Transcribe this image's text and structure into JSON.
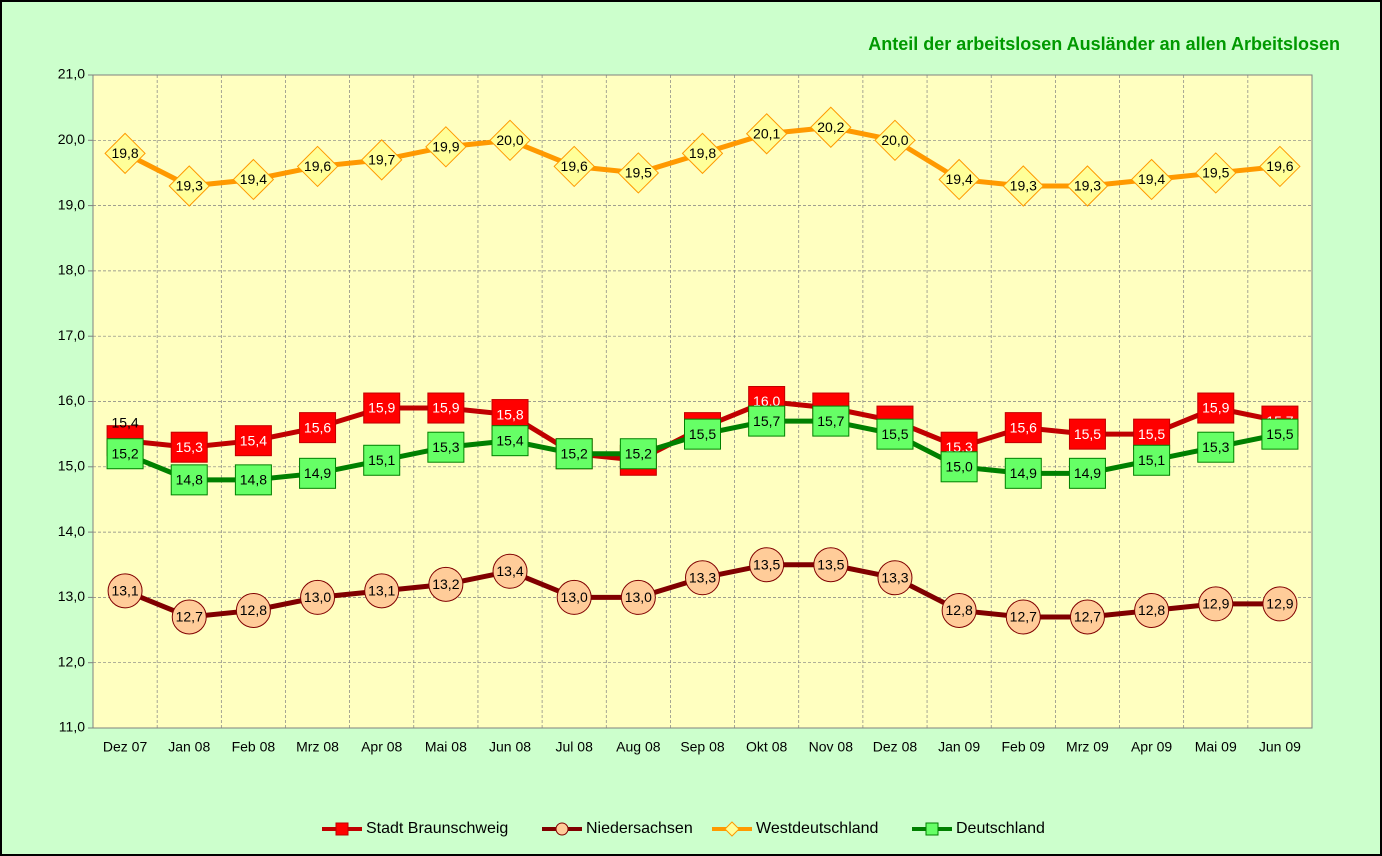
{
  "chart_data": {
    "type": "line",
    "title": "Anteil der arbeitslosen Ausländer an allen Arbeitslosen",
    "categories": [
      "Dez 07",
      "Jan 08",
      "Feb 08",
      "Mrz 08",
      "Apr 08",
      "Mai 08",
      "Jun 08",
      "Jul 08",
      "Aug 08",
      "Sep 08",
      "Okt 08",
      "Nov 08",
      "Dez 08",
      "Jan 09",
      "Feb 09",
      "Mrz 09",
      "Apr 09",
      "Mai 09",
      "Jun 09"
    ],
    "ylim": [
      11,
      21
    ],
    "yticks": [
      {
        "value": 11,
        "label": "11,0"
      },
      {
        "value": 12,
        "label": "12,0"
      },
      {
        "value": 13,
        "label": "13,0"
      },
      {
        "value": 14,
        "label": "14,0"
      },
      {
        "value": 15,
        "label": "15,0"
      },
      {
        "value": 16,
        "label": "16,0"
      },
      {
        "value": 17,
        "label": "17,0"
      },
      {
        "value": 18,
        "label": "18,0"
      },
      {
        "value": 19,
        "label": "19,0"
      },
      {
        "value": 20,
        "label": "20,0"
      },
      {
        "value": 21,
        "label": "21,0"
      }
    ],
    "grid": true,
    "legend": "bottom",
    "series": [
      {
        "name": "Stadt Braunschweig",
        "color": "#C00000",
        "marker": "square",
        "marker_color": "#FF0000",
        "values": [
          15.4,
          15.3,
          15.4,
          15.6,
          15.9,
          15.9,
          15.8,
          15.2,
          15.1,
          15.6,
          16.0,
          15.9,
          15.7,
          15.3,
          15.6,
          15.5,
          15.5,
          15.9,
          15.7
        ],
        "value_labels": [
          "15,4",
          "15,3",
          "15,4",
          "15,6",
          "15,9",
          "15,9",
          "15,8",
          null,
          null,
          null,
          "16,0",
          null,
          null,
          "15,3",
          "15,6",
          "15,5",
          "15,5",
          "15,9",
          "15,7"
        ]
      },
      {
        "name": "Niedersachsen",
        "color": "#800000",
        "marker": "circle",
        "marker_color": "#FFCC99",
        "values": [
          13.1,
          12.7,
          12.8,
          13.0,
          13.1,
          13.2,
          13.4,
          13.0,
          13.0,
          13.3,
          13.5,
          13.5,
          13.3,
          12.8,
          12.7,
          12.7,
          12.8,
          12.9,
          12.9
        ],
        "value_labels": [
          "13,1",
          "12,7",
          "12,8",
          "13,0",
          "13,1",
          "13,2",
          "13,4",
          "13,0",
          "13,0",
          "13,3",
          "13,5",
          "13,5",
          "13,3",
          "12,8",
          "12,7",
          "12,7",
          "12,8",
          "12,9",
          "12,9"
        ]
      },
      {
        "name": "Westdeutschland",
        "color": "#FF9900",
        "marker": "diamond",
        "marker_color": "#FFFF99",
        "values": [
          19.8,
          19.3,
          19.4,
          19.6,
          19.7,
          19.9,
          20.0,
          19.6,
          19.5,
          19.8,
          20.1,
          20.2,
          20.0,
          19.4,
          19.3,
          19.3,
          19.4,
          19.5,
          19.6
        ],
        "value_labels": [
          "19,8",
          "19,3",
          "19,4",
          "19,6",
          "19,7",
          "19,9",
          "20,0",
          "19,6",
          "19,5",
          "19,8",
          "20,1",
          "20,2",
          "20,0",
          "19,4",
          "19,3",
          "19,3",
          "19,4",
          "19,5",
          "19,6"
        ]
      },
      {
        "name": "Deutschland",
        "color": "#008000",
        "marker": "square",
        "marker_color": "#66FF66",
        "values": [
          15.2,
          14.8,
          14.8,
          14.9,
          15.1,
          15.3,
          15.4,
          15.2,
          15.2,
          15.5,
          15.7,
          15.7,
          15.5,
          15.0,
          14.9,
          14.9,
          15.1,
          15.3,
          15.5
        ],
        "value_labels": [
          "15,2",
          "14,8",
          "14,8",
          "14,9",
          "15,1",
          "15,3",
          "15,4",
          "15,2",
          "15,2",
          "15,5",
          "15,7",
          "15,7",
          "15,5",
          "15,0",
          "14,9",
          "14,9",
          "15,1",
          "15,3",
          "15,5"
        ]
      }
    ]
  }
}
